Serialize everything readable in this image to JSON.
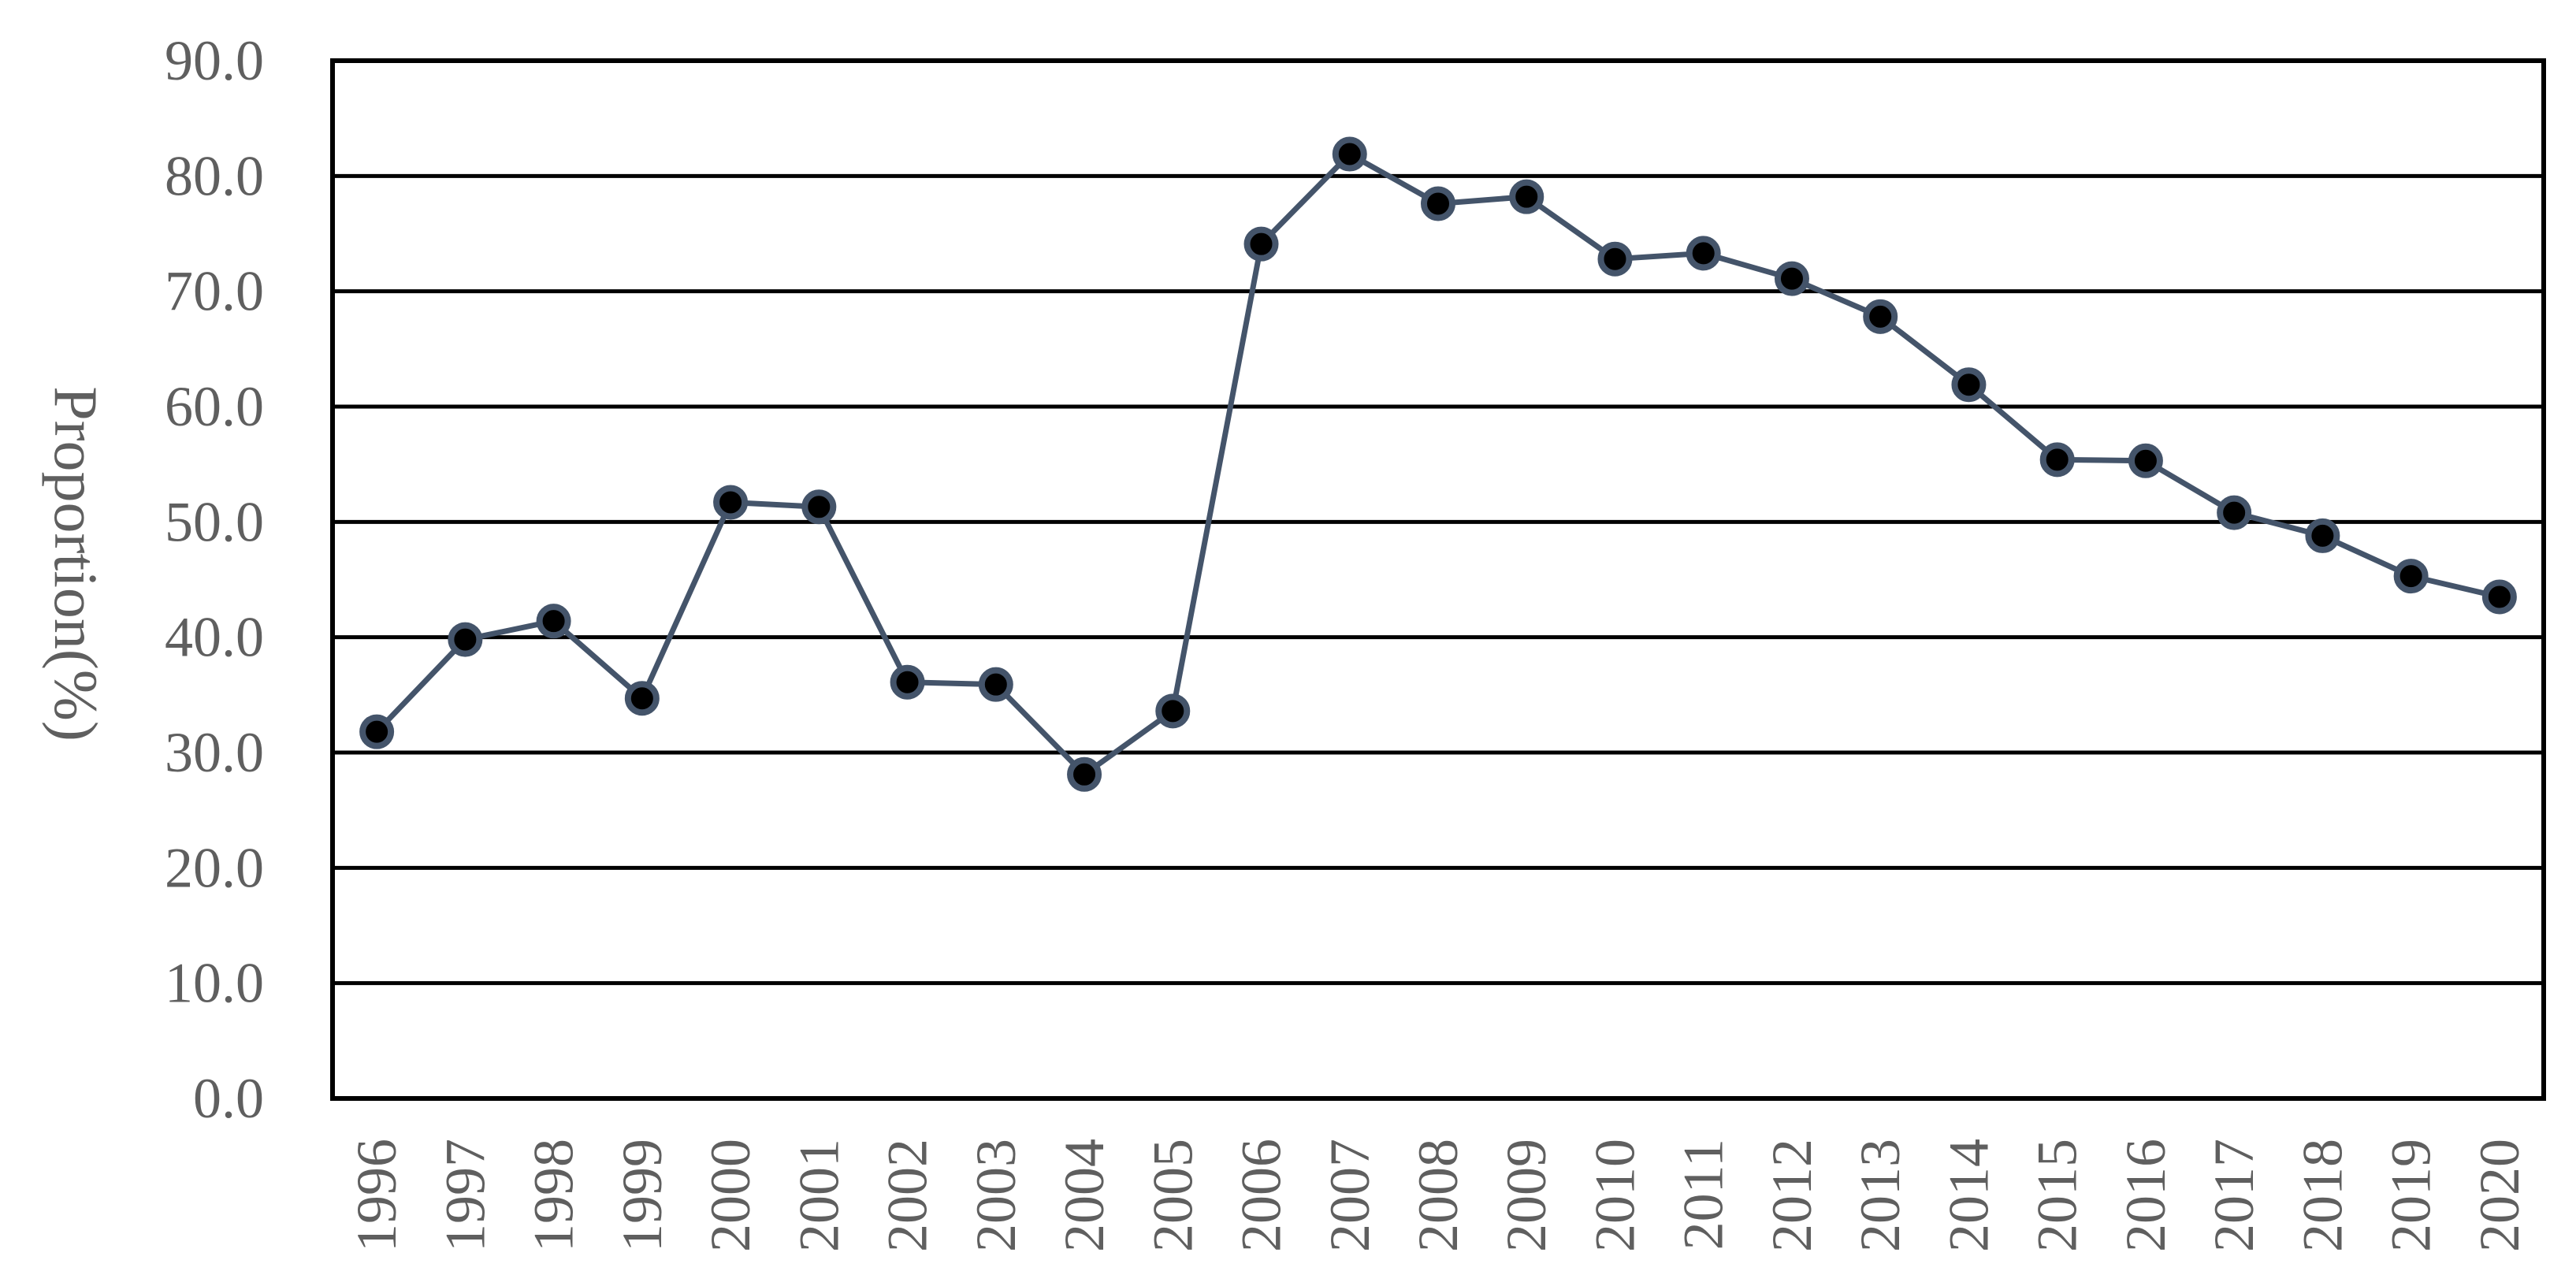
{
  "chart_data": {
    "type": "line",
    "title": "",
    "xlabel": "",
    "ylabel": "Proportion(%)",
    "ylim": [
      0,
      90
    ],
    "yticks": [
      "0.0",
      "10.0",
      "20.0",
      "30.0",
      "40.0",
      "50.0",
      "60.0",
      "70.0",
      "80.0",
      "90.0"
    ],
    "grid": true,
    "legend": "none",
    "categories": [
      "1996",
      "1997",
      "1998",
      "1999",
      "2000",
      "2001",
      "2002",
      "2003",
      "2004",
      "2005",
      "2006",
      "2007",
      "2008",
      "2009",
      "2010",
      "2011",
      "2012",
      "2013",
      "2014",
      "2015",
      "2016",
      "2017",
      "2018",
      "2019",
      "2020"
    ],
    "series": [
      {
        "values": [
          31.8,
          39.8,
          41.4,
          34.7,
          51.7,
          51.3,
          36.1,
          35.9,
          28.1,
          33.6,
          74.1,
          81.9,
          77.6,
          78.2,
          72.8,
          73.3,
          71.1,
          67.8,
          61.9,
          55.4,
          55.3,
          50.8,
          48.8,
          45.3,
          43.5
        ],
        "color": "#44546a",
        "marker_color": "#000000"
      }
    ]
  }
}
